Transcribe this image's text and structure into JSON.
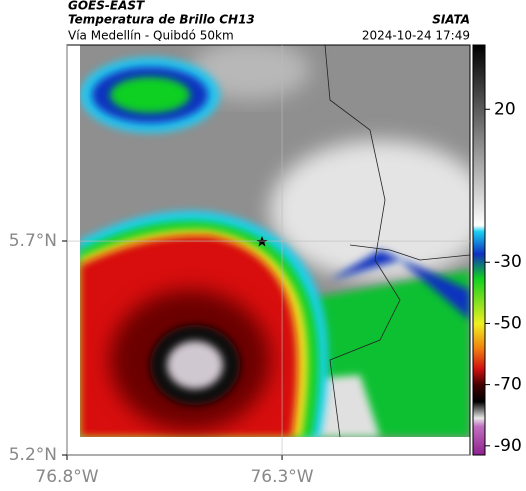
{
  "header": {
    "title": "GOES-EAST",
    "subtitle": "Temperatura de Brillo CH13",
    "route": "Vía Medellín - Quibdó 50km",
    "source": "SIATA",
    "timestamp": "2024-10-24 17:49"
  },
  "map": {
    "xlim": [
      -76.8,
      -75.863
    ],
    "ylim": [
      5.2,
      6.158
    ],
    "xticks": [
      {
        "value": -76.8,
        "label": "76.8°W"
      },
      {
        "value": -76.3,
        "label": "76.3°W"
      }
    ],
    "yticks": [
      {
        "value": 5.7,
        "label": "5.7°N"
      },
      {
        "value": 5.2,
        "label": "5.2°N"
      }
    ]
  },
  "colorbar": {
    "lim": [
      -93,
      41
    ],
    "ticks": [
      20,
      -30,
      -50,
      -70,
      -90
    ]
  }
}
